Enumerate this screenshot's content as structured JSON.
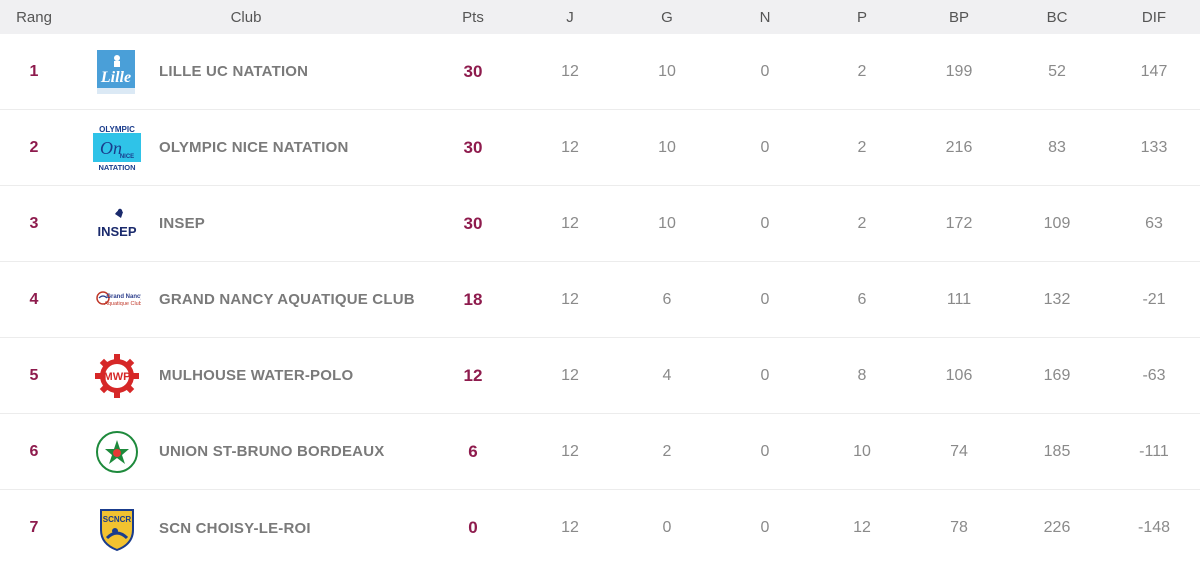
{
  "headers": {
    "rank": "Rang",
    "club": "Club",
    "pts": "Pts",
    "j": "J",
    "g": "G",
    "n": "N",
    "p": "P",
    "bp": "BP",
    "bc": "BC",
    "dif": "DIF"
  },
  "accent_color": "#8e1b4d",
  "rows": [
    {
      "rank": "1",
      "logo": "lille-uc-logo",
      "club": "LILLE UC NATATION",
      "pts": "30",
      "j": "12",
      "g": "10",
      "n": "0",
      "p": "2",
      "bp": "199",
      "bc": "52",
      "dif": "147"
    },
    {
      "rank": "2",
      "logo": "olympic-nice-logo",
      "club": "OLYMPIC NICE NATATION",
      "pts": "30",
      "j": "12",
      "g": "10",
      "n": "0",
      "p": "2",
      "bp": "216",
      "bc": "83",
      "dif": "133"
    },
    {
      "rank": "3",
      "logo": "insep-logo",
      "club": "INSEP",
      "pts": "30",
      "j": "12",
      "g": "10",
      "n": "0",
      "p": "2",
      "bp": "172",
      "bc": "109",
      "dif": "63"
    },
    {
      "rank": "4",
      "logo": "grand-nancy-logo",
      "club": "GRAND NANCY AQUATIQUE CLUB",
      "pts": "18",
      "j": "12",
      "g": "6",
      "n": "0",
      "p": "6",
      "bp": "111",
      "bc": "132",
      "dif": "-21"
    },
    {
      "rank": "5",
      "logo": "mulhouse-logo",
      "club": "MULHOUSE WATER-POLO",
      "pts": "12",
      "j": "12",
      "g": "4",
      "n": "0",
      "p": "8",
      "bp": "106",
      "bc": "169",
      "dif": "-63"
    },
    {
      "rank": "6",
      "logo": "union-st-bruno-logo",
      "club": "UNION ST-BRUNO BORDEAUX",
      "pts": "6",
      "j": "12",
      "g": "2",
      "n": "0",
      "p": "10",
      "bp": "74",
      "bc": "185",
      "dif": "-111"
    },
    {
      "rank": "7",
      "logo": "scn-choisy-logo",
      "club": "SCN CHOISY-LE-ROI",
      "pts": "0",
      "j": "12",
      "g": "0",
      "n": "0",
      "p": "12",
      "bp": "78",
      "bc": "226",
      "dif": "-148"
    }
  ]
}
